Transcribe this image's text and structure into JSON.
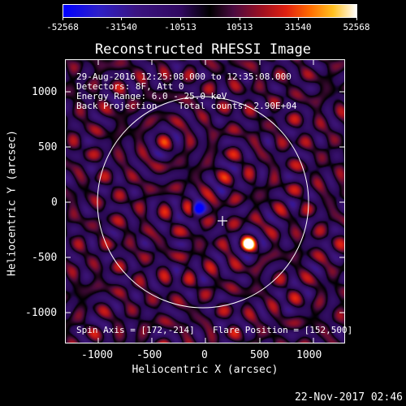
{
  "colorbar": {
    "labels": [
      "-52568",
      "-31540",
      "-10513",
      "10513",
      "31540",
      "52568"
    ]
  },
  "title": "Reconstructed RHESSI Image",
  "annotations": {
    "time_range": "29-Aug-2016 12:25:08.000 to 12:35:08.000",
    "detectors": "Detectors: 8F, Att 0",
    "energy": "Energy Range: 6.0 - 25.0 keV",
    "method": "Back Projection    Total counts: 2.90E+04",
    "spin_axis": "Spin Axis = [172,-214]",
    "flare_position": "Flare Position = [152,500]"
  },
  "axes": {
    "xlabel": "Heliocentric X (arcsec)",
    "ylabel": "Heliocentric Y (arcsec)",
    "xticks": [
      "-1000",
      "-500",
      "0",
      "500",
      "1000"
    ],
    "yticks": [
      "1000",
      "500",
      "0",
      "-500",
      "-1000"
    ],
    "xlim": [
      -1290,
      1290
    ],
    "ylim": [
      -1290,
      1290
    ]
  },
  "footer": {
    "timestamp": "22-Nov-2017 02:46"
  },
  "colors": {
    "background": "#000000",
    "foreground": "#ffffff"
  }
}
